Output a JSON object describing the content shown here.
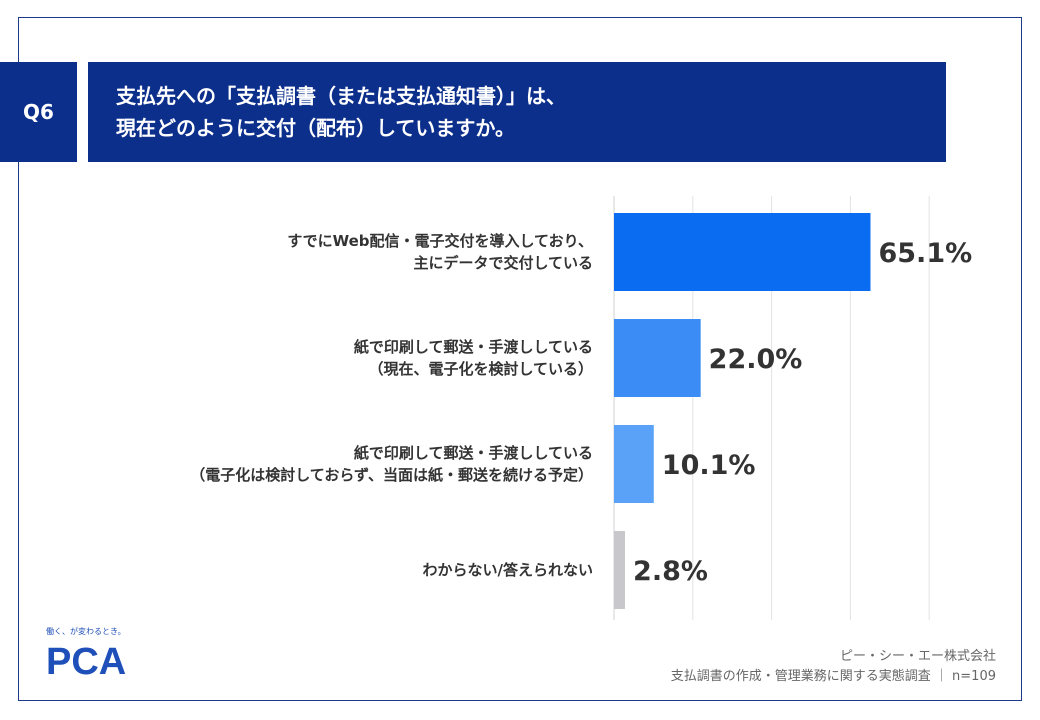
{
  "header": {
    "question_label": "Q6",
    "title_line1": "支払先への「支払調書（または支払通知書）」は、",
    "title_line2": "現在どのように交付（配布）していますか。"
  },
  "chart_data": {
    "type": "bar",
    "orientation": "horizontal",
    "categories": [
      [
        "すでにWeb配信・電子交付を導入しており、",
        "主にデータで交付している"
      ],
      [
        "紙で印刷して郵送・手渡ししている",
        "（現在、電子化を検討している）"
      ],
      [
        "紙で印刷して郵送・手渡ししている",
        "（電子化は検討しておらず、当面は紙・郵送を続ける予定）"
      ],
      [
        "わからない/答えられない"
      ]
    ],
    "values": [
      65.1,
      22.0,
      10.1,
      2.8
    ],
    "value_labels": [
      "65.1%",
      "22.0%",
      "10.1%",
      "2.8%"
    ],
    "bar_colors": [
      "#0a6cf0",
      "#3b8df5",
      "#5aa2f7",
      "#c8c8cc"
    ],
    "xlim": [
      0,
      100
    ],
    "grid": true
  },
  "brand": {
    "tagline": "働く、が変わるとき。",
    "logo_text": "PCA",
    "color": "#1f4fb8"
  },
  "footer": {
    "company": "ピー・シー・エー株式会社",
    "survey": "支払調書の作成・管理業務に関する実態調査 ｜ n=109"
  }
}
